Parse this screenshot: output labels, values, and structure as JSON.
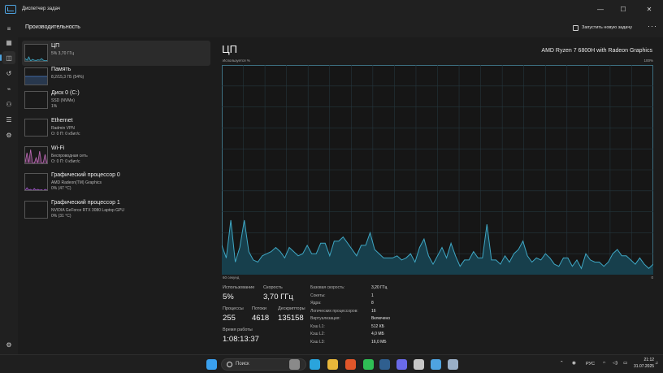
{
  "window": {
    "title": "Диспетчер задач",
    "min_label": "—",
    "max_label": "☐",
    "close_label": "✕"
  },
  "header": {
    "title": "Производительность",
    "new_task_label": "Запустить новую задачу",
    "more_label": "···"
  },
  "rail": {
    "items": [
      {
        "icon": "menu-icon",
        "glyph": "≡"
      },
      {
        "icon": "processes-icon",
        "glyph": "▦"
      },
      {
        "icon": "performance-icon",
        "glyph": "◫"
      },
      {
        "icon": "app-history-icon",
        "glyph": "↺"
      },
      {
        "icon": "startup-apps-icon",
        "glyph": "⌁"
      },
      {
        "icon": "users-icon",
        "glyph": "⚇"
      },
      {
        "icon": "details-icon",
        "glyph": "☰"
      },
      {
        "icon": "services-icon",
        "glyph": "⚙"
      }
    ],
    "settings_glyph": "⚙"
  },
  "devices": [
    {
      "name": "ЦП",
      "sub1": "5% 3,70 ГГц",
      "sub2": "",
      "color": "#3fa7c4"
    },
    {
      "name": "Память",
      "sub1": "8,2/15,3 ГБ (54%)",
      "sub2": "",
      "color": "#4a7ec8"
    },
    {
      "name": "Диск 0 (C:)",
      "sub1": "SSD (NVMe)",
      "sub2": "1%",
      "color": "#6db04a"
    },
    {
      "name": "Ethernet",
      "sub1": "Radmin VPN",
      "sub2": "О: 0 П: 0 кбит/с",
      "color": "#b07cc8"
    },
    {
      "name": "Wi-Fi",
      "sub1": "Беспроводная сеть",
      "sub2": "О: 0 П: 0 кбит/с",
      "color": "#c06ab8"
    },
    {
      "name": "Графический процессор 0",
      "sub1": "AMD Radeon(TM) Graphics",
      "sub2": "0% (47 °C)",
      "color": "#a05ac8"
    },
    {
      "name": "Графический процессор 1",
      "sub1": "NVIDIA GeForce RTX 3080 Laptop GPU",
      "sub2": "0% (31 °C)",
      "color": "#a05ac8"
    }
  ],
  "main": {
    "title": "ЦП",
    "model": "AMD Ryzen 7 6800H with Radeon Graphics",
    "util_label": "Используется %",
    "util_max": "100%",
    "time_left": "60 секунд",
    "time_right": "0"
  },
  "chart_data": {
    "type": "area",
    "ylim": [
      0,
      100
    ],
    "values": [
      14,
      8,
      26,
      6,
      13,
      26,
      11,
      7,
      6,
      9,
      10,
      11,
      13,
      11,
      8,
      13,
      11,
      9,
      10,
      14,
      10,
      10,
      15,
      15,
      9,
      16,
      16,
      18,
      15,
      12,
      9,
      14,
      14,
      20,
      12,
      10,
      8,
      8,
      8,
      9,
      7,
      8,
      10,
      6,
      13,
      17,
      9,
      5,
      9,
      13,
      8,
      15,
      9,
      4,
      7,
      7,
      11,
      8,
      8,
      24,
      7,
      7,
      5,
      9,
      6,
      10,
      12,
      16,
      9,
      6,
      8,
      7,
      10,
      8,
      5,
      4,
      8,
      8,
      4,
      7,
      3,
      10,
      7,
      6,
      6,
      4,
      6,
      10,
      12,
      9,
      9,
      7,
      5,
      8,
      5,
      3,
      5
    ]
  },
  "stats": {
    "utilization": {
      "label": "Использование",
      "value": "5%"
    },
    "speed": {
      "label": "Скорость",
      "value": "3,70 ГГц"
    },
    "processes": {
      "label": "Процессы",
      "value": "255"
    },
    "threads": {
      "label": "Потоки",
      "value": "4618"
    },
    "handles": {
      "label": "Дескрипторы",
      "value": "135158"
    },
    "uptime": {
      "label": "Время работы",
      "value": "1:08:13:37"
    }
  },
  "specs": [
    {
      "k": "Базовая скорость:",
      "v": "3,20 ГГц"
    },
    {
      "k": "Сокеты:",
      "v": "1"
    },
    {
      "k": "Ядра:",
      "v": "8"
    },
    {
      "k": "Логических процессоров:",
      "v": "16"
    },
    {
      "k": "Виртуализация:",
      "v": "Включено"
    },
    {
      "k": "Кэш L1:",
      "v": "512 КБ"
    },
    {
      "k": "Кэш L2:",
      "v": "4,0 МБ"
    },
    {
      "k": "Кэш L3:",
      "v": "16,0 МБ"
    }
  ],
  "taskbar": {
    "search_placeholder": "Поиск",
    "lang": "РУС",
    "time": "21:12",
    "date": "31.07.2025",
    "apps": [
      {
        "icon": "windows-start-icon",
        "color": "#3aa0ee"
      },
      {
        "icon": "task-view-icon",
        "color": "#8a8a8a"
      },
      {
        "icon": "telegram-icon",
        "color": "#2aa4dc"
      },
      {
        "icon": "file-explorer-icon",
        "color": "#e8b73a"
      },
      {
        "icon": "brave-icon",
        "color": "#e0562a"
      },
      {
        "icon": "whatsapp-icon",
        "color": "#2fbf55"
      },
      {
        "icon": "steam-icon",
        "color": "#2f5f8f"
      },
      {
        "icon": "discord-icon",
        "color": "#6a6ae8"
      },
      {
        "icon": "app-icon",
        "color": "#c8c8c8"
      },
      {
        "icon": "task-manager-icon",
        "color": "#4ea3e0"
      },
      {
        "icon": "app-icon-2",
        "color": "#9ab0c8"
      }
    ]
  }
}
